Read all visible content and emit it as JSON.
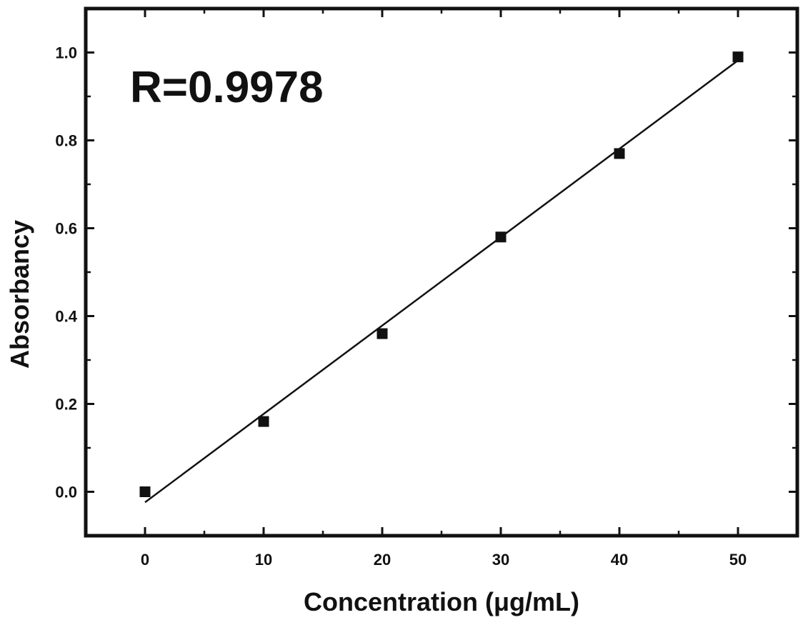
{
  "chart_data": {
    "type": "scatter",
    "xlabel": "Concentration (μg/mL)",
    "ylabel": "Absorbancy",
    "xlim": [
      -5,
      55
    ],
    "ylim": [
      -0.1,
      1.1
    ],
    "x_ticks": [
      0,
      10,
      20,
      30,
      40,
      50
    ],
    "y_ticks": [
      0.0,
      0.2,
      0.4,
      0.6,
      0.8,
      1.0
    ],
    "x_tick_labels": [
      "0",
      "10",
      "20",
      "30",
      "40",
      "50"
    ],
    "y_tick_labels": [
      "0.0",
      "0.2",
      "0.4",
      "0.6",
      "0.8",
      "1.0"
    ],
    "grid": false,
    "series": [
      {
        "x": [
          0,
          10,
          20,
          30,
          40,
          50
        ],
        "y": [
          0.0,
          0.16,
          0.36,
          0.58,
          0.77,
          0.99
        ],
        "marker": "square",
        "color": "#111111"
      }
    ],
    "fit_line": {
      "x": [
        0,
        50
      ],
      "y": [
        -0.024,
        0.982
      ],
      "color": "#111111"
    },
    "annotation": "R=0.9978"
  }
}
